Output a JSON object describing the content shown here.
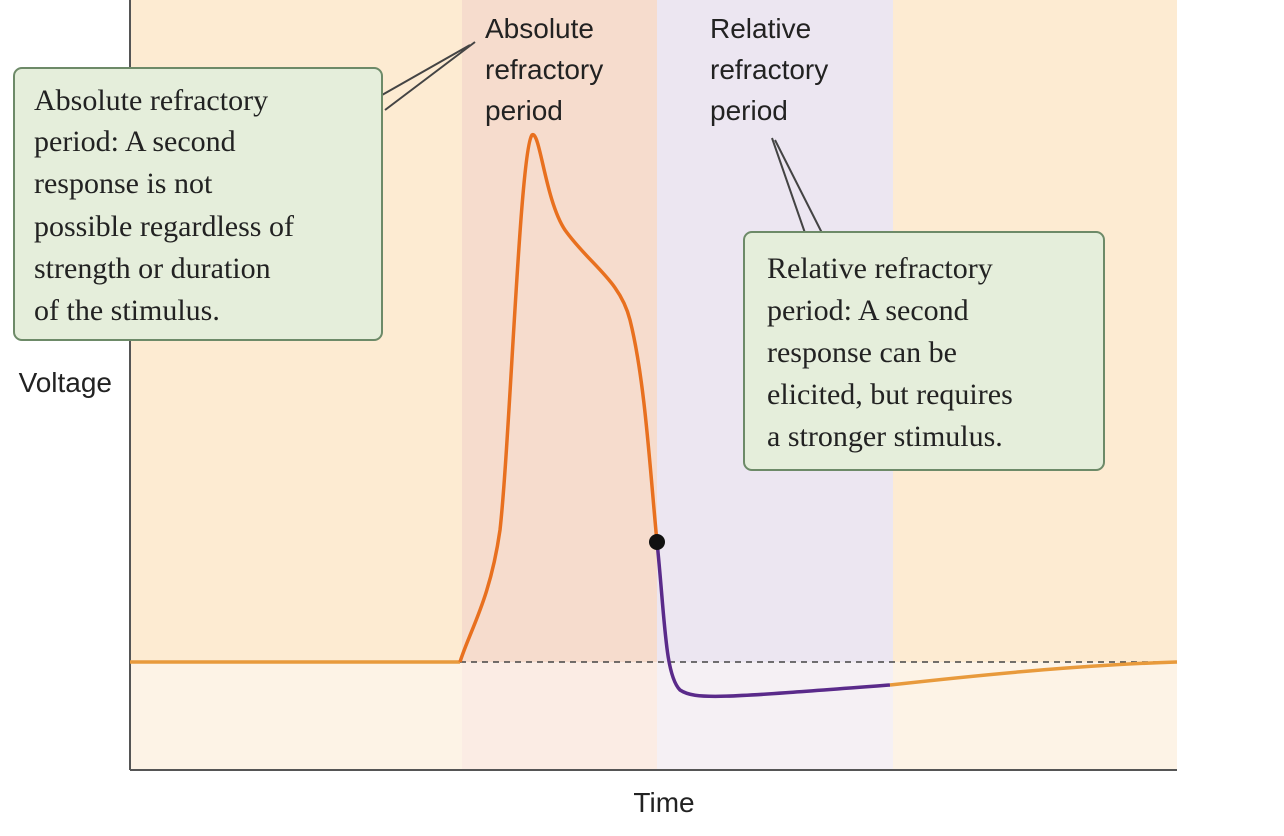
{
  "axes": {
    "y_label": "Voltage",
    "x_label": "Time"
  },
  "region_labels": {
    "absolute": [
      "Absolute",
      "refractory",
      "period"
    ],
    "relative": [
      "Relative",
      "refractory",
      "period"
    ]
  },
  "callouts": {
    "absolute": [
      "Absolute refractory",
      "period: A second",
      "response is not",
      "possible regardless of",
      "strength or duration",
      "of the stimulus."
    ],
    "relative": [
      "Relative refractory",
      "period: A second",
      "response can be",
      "elicited, but requires",
      "a stronger stimulus."
    ]
  }
}
